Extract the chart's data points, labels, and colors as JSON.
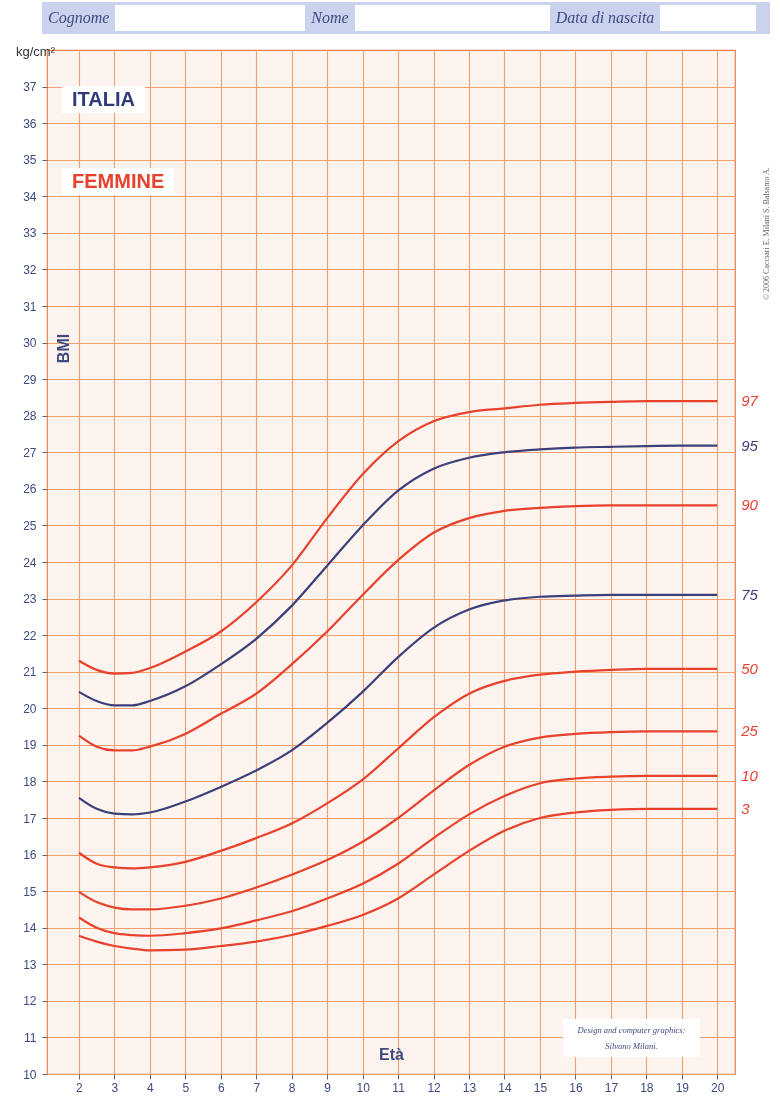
{
  "chart_data": {
    "type": "line",
    "title": "ITALIA",
    "subtitle": "FEMMINE",
    "xlabel": "Età",
    "ylabel": "BMI",
    "x": [
      2,
      2.5,
      3,
      3.5,
      4,
      5,
      6,
      7,
      8,
      9,
      10,
      11,
      12,
      13,
      14,
      15,
      16,
      17,
      18,
      19,
      20
    ],
    "series": [
      {
        "name": "97",
        "color": "#e8412c",
        "values": [
          21.3,
          21.05,
          20.95,
          20.97,
          21.1,
          21.55,
          22.1,
          22.9,
          23.9,
          25.2,
          26.4,
          27.3,
          27.85,
          28.1,
          28.2,
          28.3,
          28.35,
          28.38,
          28.4,
          28.4,
          28.4
        ]
      },
      {
        "name": "95",
        "color": "#3b3f7a",
        "values": [
          20.45,
          20.2,
          20.08,
          20.08,
          20.2,
          20.6,
          21.2,
          21.9,
          22.8,
          23.9,
          25.0,
          25.95,
          26.55,
          26.85,
          27.0,
          27.08,
          27.13,
          27.15,
          27.17,
          27.18,
          27.18
        ]
      },
      {
        "name": "90",
        "color": "#e8412c",
        "values": [
          19.25,
          18.95,
          18.85,
          18.85,
          18.95,
          19.3,
          19.85,
          20.4,
          21.2,
          22.1,
          23.1,
          24.05,
          24.8,
          25.2,
          25.4,
          25.48,
          25.53,
          25.55,
          25.55,
          25.55,
          25.55
        ]
      },
      {
        "name": "75",
        "color": "#3b3f7a",
        "values": [
          17.55,
          17.25,
          17.12,
          17.1,
          17.15,
          17.45,
          17.85,
          18.3,
          18.85,
          19.6,
          20.45,
          21.4,
          22.2,
          22.7,
          22.95,
          23.05,
          23.08,
          23.1,
          23.1,
          23.1,
          23.1
        ]
      },
      {
        "name": "50",
        "color": "#e8412c",
        "values": [
          16.05,
          15.75,
          15.65,
          15.62,
          15.65,
          15.8,
          16.1,
          16.45,
          16.85,
          17.4,
          18.05,
          18.9,
          19.75,
          20.4,
          20.75,
          20.92,
          21.0,
          21.05,
          21.08,
          21.08,
          21.08
        ]
      },
      {
        "name": "25",
        "color": "#e8412c",
        "values": [
          14.98,
          14.7,
          14.55,
          14.5,
          14.5,
          14.6,
          14.8,
          15.1,
          15.45,
          15.85,
          16.35,
          17.0,
          17.75,
          18.45,
          18.95,
          19.2,
          19.3,
          19.35,
          19.37,
          19.37,
          19.37
        ]
      },
      {
        "name": "10",
        "color": "#e8412c",
        "values": [
          14.28,
          14.0,
          13.85,
          13.8,
          13.78,
          13.85,
          13.98,
          14.2,
          14.45,
          14.8,
          15.2,
          15.75,
          16.45,
          17.1,
          17.6,
          17.95,
          18.08,
          18.13,
          18.15,
          18.15,
          18.15
        ]
      },
      {
        "name": "3",
        "color": "#e8412c",
        "values": [
          13.78,
          13.62,
          13.5,
          13.43,
          13.38,
          13.4,
          13.5,
          13.62,
          13.8,
          14.05,
          14.35,
          14.8,
          15.45,
          16.1,
          16.65,
          17.0,
          17.15,
          17.22,
          17.25,
          17.25,
          17.25
        ]
      }
    ],
    "xlim": [
      1.1,
      20.5
    ],
    "xticks": [
      2,
      3,
      4,
      5,
      6,
      7,
      8,
      9,
      10,
      11,
      12,
      13,
      14,
      15,
      16,
      17,
      18,
      19,
      20
    ],
    "ylim": [
      10,
      38
    ],
    "yticks": [
      10,
      11,
      12,
      13,
      14,
      15,
      16,
      17,
      18,
      19,
      20,
      21,
      22,
      23,
      24,
      25,
      26,
      27,
      28,
      29,
      30,
      31,
      32,
      33,
      34,
      35,
      36,
      37
    ],
    "grid": true,
    "marker": "none",
    "line_style": "solid",
    "annotations": [
      "Cognome",
      "Nome",
      "Data di nascita",
      "kg/cm²",
      "© 2006 Cacciari E. Milani S. Balsamo A.",
      "Design and computer graphics: Silvano Milani."
    ]
  }
}
